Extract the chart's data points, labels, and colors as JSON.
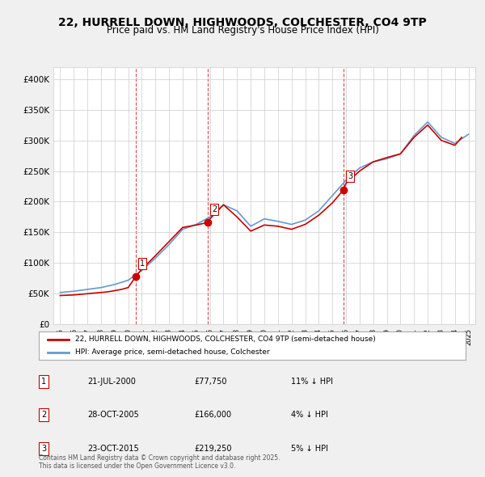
{
  "title": "22, HURRELL DOWN, HIGHWOODS, COLCHESTER, CO4 9TP",
  "subtitle": "Price paid vs. HM Land Registry's House Price Index (HPI)",
  "legend_line1": "22, HURRELL DOWN, HIGHWOODS, COLCHESTER, CO4 9TP (semi-detached house)",
  "legend_line2": "HPI: Average price, semi-detached house, Colchester",
  "footer": "Contains HM Land Registry data © Crown copyright and database right 2025.\nThis data is licensed under the Open Government Licence v3.0.",
  "sale_color": "#cc0000",
  "hpi_color": "#6699cc",
  "background_color": "#f0f0f0",
  "plot_bg_color": "#ffffff",
  "ylim": [
    0,
    420000
  ],
  "yticks": [
    0,
    50000,
    100000,
    150000,
    200000,
    250000,
    300000,
    350000,
    400000
  ],
  "ytick_labels": [
    "£0",
    "£50K",
    "£100K",
    "£150K",
    "£200K",
    "£250K",
    "£300K",
    "£350K",
    "£400K"
  ],
  "sales": [
    {
      "date": 2000.55,
      "price": 77750,
      "label": "1"
    },
    {
      "date": 2005.83,
      "price": 166000,
      "label": "2"
    },
    {
      "date": 2015.81,
      "price": 219250,
      "label": "3"
    }
  ],
  "sale_annotations": [
    {
      "num": "1",
      "date": "21-JUL-2000",
      "price": "£77,750",
      "note": "11% ↓ HPI"
    },
    {
      "num": "2",
      "date": "28-OCT-2005",
      "price": "£166,000",
      "note": "4% ↓ HPI"
    },
    {
      "num": "3",
      "date": "23-OCT-2015",
      "price": "£219,250",
      "note": "5% ↓ HPI"
    }
  ],
  "vline_dates": [
    2000.55,
    2005.83,
    2015.81
  ],
  "hpi_data": {
    "years": [
      1995,
      1996,
      1997,
      1998,
      1999,
      2000,
      2001,
      2002,
      2003,
      2004,
      2005,
      2006,
      2007,
      2008,
      2009,
      2010,
      2011,
      2012,
      2013,
      2014,
      2015,
      2016,
      2017,
      2018,
      2019,
      2020,
      2021,
      2022,
      2023,
      2024,
      2025
    ],
    "values": [
      52000,
      54000,
      57000,
      60000,
      65000,
      72000,
      88000,
      108000,
      130000,
      155000,
      163000,
      175000,
      195000,
      185000,
      160000,
      172000,
      168000,
      163000,
      170000,
      185000,
      210000,
      235000,
      255000,
      265000,
      270000,
      278000,
      308000,
      330000,
      305000,
      295000,
      310000
    ]
  },
  "price_data": {
    "years": [
      1995.0,
      1995.5,
      1996.0,
      1996.5,
      1997.0,
      1997.5,
      1998.0,
      1998.5,
      1999.0,
      1999.5,
      2000.0,
      2000.55,
      2001.0,
      2002.0,
      2003.0,
      2004.0,
      2005.0,
      2005.83,
      2006.0,
      2007.0,
      2008.0,
      2009.0,
      2010.0,
      2011.0,
      2012.0,
      2013.0,
      2014.0,
      2015.0,
      2015.81,
      2016.0,
      2017.0,
      2018.0,
      2019.0,
      2020.0,
      2021.0,
      2022.0,
      2023.0,
      2024.0,
      2024.5
    ],
    "values": [
      47000,
      47500,
      48000,
      49000,
      50000,
      51000,
      52000,
      53000,
      55000,
      57000,
      60000,
      77750,
      90000,
      112000,
      135000,
      158000,
      162000,
      166000,
      172000,
      195000,
      175000,
      152000,
      162000,
      160000,
      155000,
      163000,
      178000,
      198000,
      219250,
      230000,
      250000,
      265000,
      272000,
      278000,
      305000,
      325000,
      300000,
      292000,
      305000
    ]
  },
  "xtick_years": [
    1995,
    1996,
    1997,
    1998,
    1999,
    2000,
    2001,
    2002,
    2003,
    2004,
    2005,
    2006,
    2007,
    2008,
    2009,
    2010,
    2011,
    2012,
    2013,
    2014,
    2015,
    2016,
    2017,
    2018,
    2019,
    2020,
    2021,
    2022,
    2023,
    2024,
    2025
  ]
}
